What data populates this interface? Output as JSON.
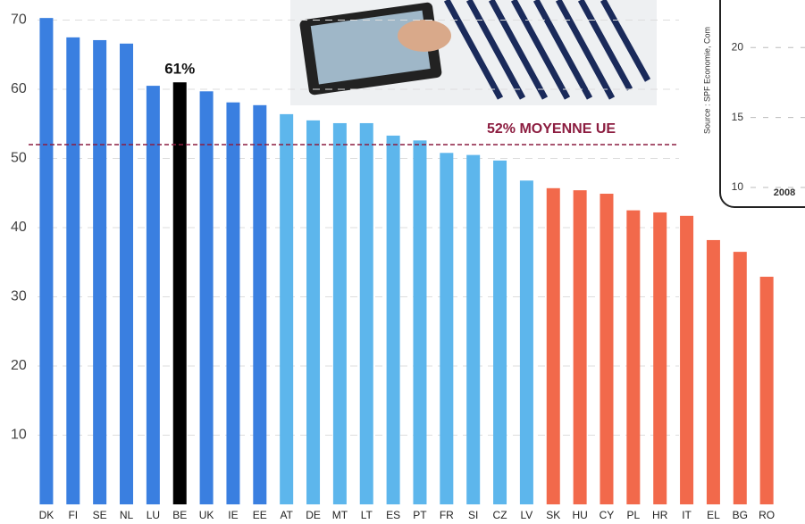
{
  "chart_data": {
    "type": "bar",
    "categories": [
      "DK",
      "FI",
      "SE",
      "NL",
      "LU",
      "BE",
      "UK",
      "IE",
      "EE",
      "AT",
      "DE",
      "MT",
      "LT",
      "ES",
      "PT",
      "FR",
      "SI",
      "CZ",
      "LV",
      "SK",
      "HU",
      "CY",
      "PL",
      "HR",
      "IT",
      "EL",
      "BG",
      "RO"
    ],
    "values": [
      70.3,
      67.5,
      67.1,
      66.6,
      60.5,
      61,
      59.7,
      58.1,
      57.7,
      56.4,
      55.5,
      55.1,
      55.1,
      53.3,
      52.6,
      50.8,
      50.5,
      49.7,
      46.8,
      45.7,
      45.4,
      44.9,
      42.5,
      42.2,
      41.7,
      38.2,
      36.5,
      32.9
    ],
    "value_labels": [
      null,
      null,
      null,
      null,
      null,
      "61%",
      null,
      null,
      null,
      null,
      null,
      null,
      null,
      null,
      null,
      null,
      null,
      null,
      null,
      null,
      null,
      null,
      null,
      null,
      null,
      null,
      null,
      null
    ],
    "colors": [
      "#3a7fe0",
      "#3a7fe0",
      "#3a7fe0",
      "#3a7fe0",
      "#3a7fe0",
      "#000000",
      "#3a7fe0",
      "#3a7fe0",
      "#3a7fe0",
      "#5db6ec",
      "#5db6ec",
      "#5db6ec",
      "#5db6ec",
      "#5db6ec",
      "#5db6ec",
      "#5db6ec",
      "#5db6ec",
      "#5db6ec",
      "#5db6ec",
      "#f2694b",
      "#f2694b",
      "#f2694b",
      "#f2694b",
      "#f2694b",
      "#f2694b",
      "#f2694b",
      "#f2694b",
      "#f2694b"
    ],
    "average": 52,
    "average_label": "52% MOYENNE UE",
    "average_color": "#8c1d40",
    "ylim": [
      0,
      72.9
    ],
    "yticks": [
      10,
      20,
      30,
      40,
      50,
      60,
      70
    ],
    "grid": true
  },
  "inset": {
    "source": "Source : SPF Economie, Com",
    "ylim": [
      8.6,
      23.4
    ],
    "yticks": [
      10,
      15,
      20
    ],
    "x_label": "2008"
  }
}
